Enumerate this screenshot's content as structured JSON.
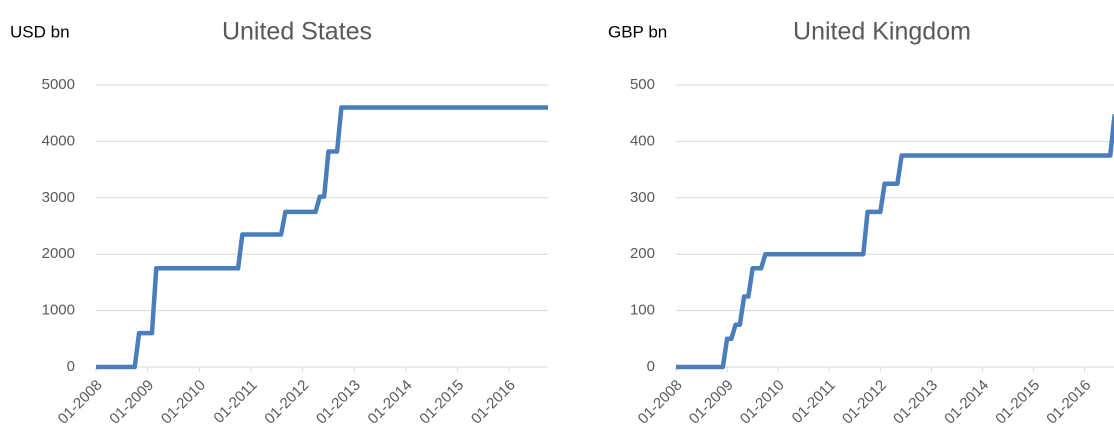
{
  "chart_data": [
    {
      "type": "line",
      "title": "United States",
      "y_label": "USD bn",
      "x": [
        "2008-01",
        "2008-10",
        "2008-11",
        "2009-02",
        "2009-03",
        "2010-10",
        "2010-11",
        "2011-08",
        "2011-09",
        "2012-04",
        "2012-05",
        "2012-06",
        "2012-07",
        "2012-09",
        "2012-10",
        "2016-10"
      ],
      "series": [
        {
          "name": "United States",
          "color": "#4a7ebb",
          "values": [
            0,
            0,
            600,
            600,
            1750,
            1750,
            2350,
            2350,
            2750,
            2750,
            3020,
            3020,
            3820,
            3820,
            4600,
            4600
          ]
        }
      ],
      "xlim": [
        "2008-01",
        "2016-10"
      ],
      "xticks": [
        {
          "value": "2008-01",
          "label": "01-2008"
        },
        {
          "value": "2009-01",
          "label": "01-2009"
        },
        {
          "value": "2010-01",
          "label": "01-2010"
        },
        {
          "value": "2011-01",
          "label": "01-2011"
        },
        {
          "value": "2012-01",
          "label": "01-2012"
        },
        {
          "value": "2013-01",
          "label": "01-2013"
        },
        {
          "value": "2014-01",
          "label": "01-2014"
        },
        {
          "value": "2015-01",
          "label": "01-2015"
        },
        {
          "value": "2016-01",
          "label": "01-2016"
        }
      ],
      "ylim": [
        0,
        5000
      ],
      "yticks": [
        0,
        1000,
        2000,
        3000,
        4000,
        5000
      ],
      "grid": true
    },
    {
      "type": "line",
      "title": "United Kingdom",
      "y_label": "GBP bn",
      "x": [
        "2008-01",
        "2008-12",
        "2009-01",
        "2009-02",
        "2009-03",
        "2009-04",
        "2009-05",
        "2009-06",
        "2009-07",
        "2009-09",
        "2009-10",
        "2011-09",
        "2011-10",
        "2012-01",
        "2012-02",
        "2012-05",
        "2012-06",
        "2016-07",
        "2016-08",
        "2016-10"
      ],
      "series": [
        {
          "name": "United Kingdom",
          "color": "#4a7ebb",
          "values": [
            0,
            0,
            50,
            50,
            75,
            75,
            125,
            125,
            175,
            175,
            200,
            200,
            275,
            275,
            325,
            325,
            375,
            375,
            445,
            445
          ]
        }
      ],
      "xlim": [
        "2008-01",
        "2016-10"
      ],
      "xticks": [
        {
          "value": "2008-01",
          "label": "01-2008"
        },
        {
          "value": "2009-01",
          "label": "01-2009"
        },
        {
          "value": "2010-01",
          "label": "01-2010"
        },
        {
          "value": "2011-01",
          "label": "01-2011"
        },
        {
          "value": "2012-01",
          "label": "01-2012"
        },
        {
          "value": "2013-01",
          "label": "01-2013"
        },
        {
          "value": "2014-01",
          "label": "01-2014"
        },
        {
          "value": "2015-01",
          "label": "01-2015"
        },
        {
          "value": "2016-01",
          "label": "01-2016"
        }
      ],
      "ylim": [
        0,
        500
      ],
      "yticks": [
        0,
        100,
        200,
        300,
        400,
        500
      ],
      "grid": true
    }
  ]
}
